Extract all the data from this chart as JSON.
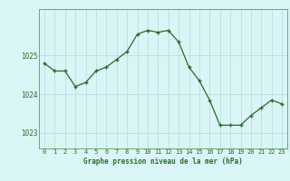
{
  "hours": [
    0,
    1,
    2,
    3,
    4,
    5,
    6,
    7,
    8,
    9,
    10,
    11,
    12,
    13,
    14,
    15,
    16,
    17,
    18,
    19,
    20,
    21,
    22,
    23
  ],
  "values": [
    1024.8,
    1024.6,
    1024.6,
    1024.2,
    1024.3,
    1024.6,
    1024.7,
    1024.9,
    1025.1,
    1025.55,
    1025.65,
    1025.6,
    1025.65,
    1025.35,
    1024.7,
    1024.35,
    1023.85,
    1023.2,
    1023.2,
    1023.2,
    1023.45,
    1023.65,
    1023.85,
    1023.75
  ],
  "line_color": "#2d6a2d",
  "marker_color": "#2d6a2d",
  "bg_color": "#d9f5f5",
  "grid_color": "#b8e0e0",
  "border_color": "#6aaa6a",
  "xlabel": "Graphe pression niveau de la mer (hPa)",
  "xlabel_color": "#2d6a2d",
  "tick_color": "#2d6a2d",
  "yticks": [
    1023,
    1024,
    1025
  ],
  "ylim": [
    1022.6,
    1026.2
  ],
  "xlim": [
    -0.5,
    23.5
  ],
  "xticks": [
    0,
    1,
    2,
    3,
    4,
    5,
    6,
    7,
    8,
    9,
    10,
    11,
    12,
    13,
    14,
    15,
    16,
    17,
    18,
    19,
    20,
    21,
    22,
    23
  ],
  "xtick_labels": [
    "0",
    "1",
    "2",
    "3",
    "4",
    "5",
    "6",
    "7",
    "8",
    "9",
    "10",
    "11",
    "12",
    "13",
    "14",
    "15",
    "16",
    "17",
    "18",
    "19",
    "20",
    "21",
    "22",
    "23"
  ]
}
